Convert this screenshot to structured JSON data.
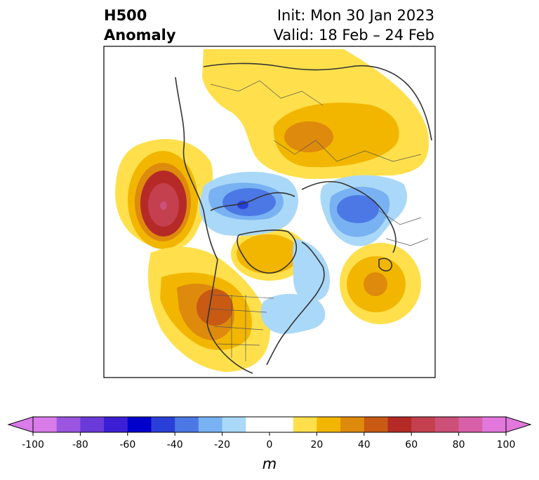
{
  "header": {
    "title_line1": "H500",
    "title_line2": "Anomaly",
    "init": "Init: Mon 30 Jan 2023",
    "valid": "Valid: 18 Feb – 24 Feb"
  },
  "colorbar": {
    "unit": "m",
    "ticks": [
      "-100",
      "-80",
      "-60",
      "-40",
      "-20",
      "0",
      "20",
      "40",
      "60",
      "80",
      "100"
    ],
    "levels": [
      -100,
      -90,
      -80,
      -70,
      -60,
      -50,
      -40,
      -30,
      -20,
      -10,
      10,
      20,
      30,
      40,
      50,
      60,
      70,
      80,
      90,
      100
    ],
    "colors": [
      "#d97be8",
      "#9b55e0",
      "#6a3ad8",
      "#3c1fd4",
      "#0000cc",
      "#2a3fd8",
      "#4c78e6",
      "#79b2f2",
      "#aad8f8",
      "#ffffff",
      "#ffe04c",
      "#f2b600",
      "#de8a0c",
      "#c85a14",
      "#b52a26",
      "#c4404f",
      "#cc5078",
      "#d860a8",
      "#e278dc"
    ],
    "under_color": "#d97be8",
    "over_color": "#e278dc"
  },
  "map": {
    "projection": "north-polar-stereographic",
    "anomalies": [
      {
        "region": "Gulf of Alaska / Pacific NW coast",
        "sign": "positive",
        "peak_m": 80
      },
      {
        "region": "Southwestern US",
        "sign": "positive",
        "peak_m": 50
      },
      {
        "region": "Siberia / Eurasia",
        "sign": "positive",
        "peak_m": 40
      },
      {
        "region": "Hudson Bay",
        "sign": "positive",
        "peak_m": 30
      },
      {
        "region": "North Atlantic",
        "sign": "positive",
        "peak_m": 30
      },
      {
        "region": "Canadian Arctic Archipelago",
        "sign": "negative",
        "peak_m": -50
      },
      {
        "region": "Scandinavia / Barents Sea",
        "sign": "negative",
        "peak_m": -40
      },
      {
        "region": "Eastern US / Great Lakes",
        "sign": "negative",
        "peak_m": -20
      }
    ]
  }
}
